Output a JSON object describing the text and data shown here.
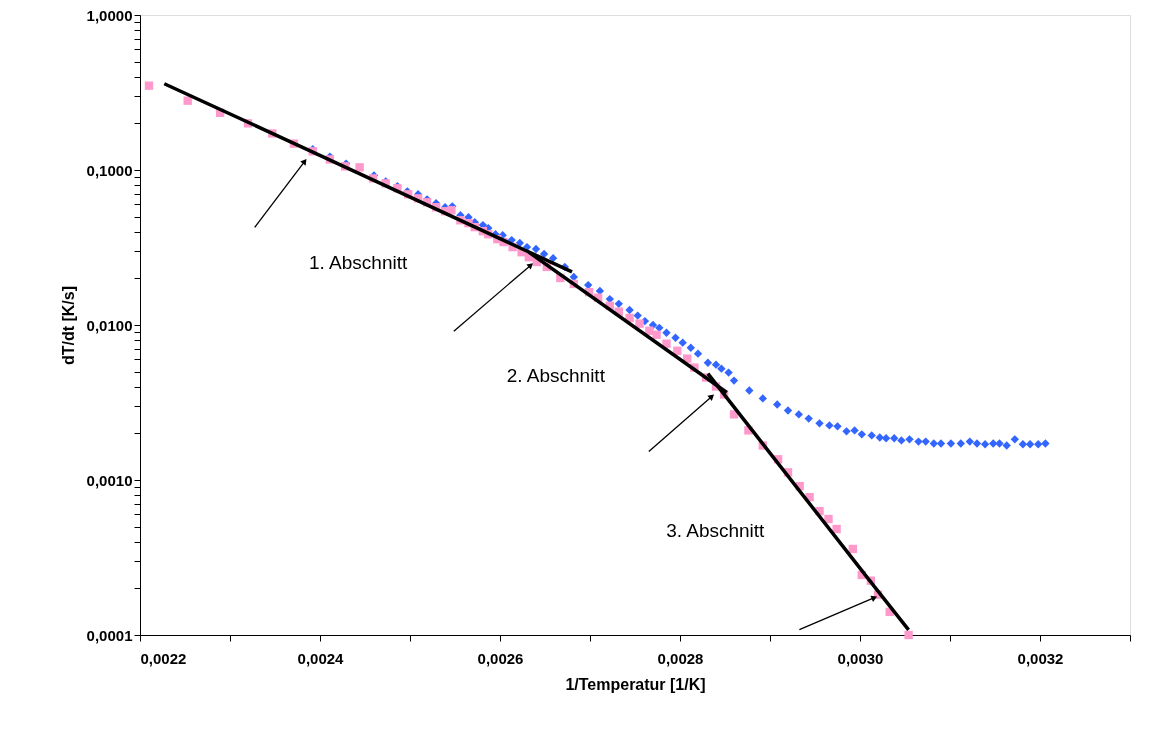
{
  "chart_data": {
    "type": "scatter",
    "xlabel": "1/Temperatur [1/K]",
    "ylabel": "dT/dt [K/s]",
    "log": "y",
    "grid": false,
    "xlim": [
      0.0022,
      0.0033
    ],
    "ylim": [
      0.0001,
      1
    ],
    "xticks": [
      {
        "value": 0.0022,
        "label": "0,0022"
      },
      {
        "value": 0.0023,
        "label": null
      },
      {
        "value": 0.0024,
        "label": "0,0024"
      },
      {
        "value": 0.0025,
        "label": null
      },
      {
        "value": 0.0026,
        "label": "0,0026"
      },
      {
        "value": 0.0027,
        "label": null
      },
      {
        "value": 0.0028,
        "label": "0,0028"
      },
      {
        "value": 0.0029,
        "label": null
      },
      {
        "value": 0.003,
        "label": "0,0030"
      },
      {
        "value": 0.0031,
        "label": null
      },
      {
        "value": 0.0032,
        "label": "0,0032"
      },
      {
        "value": 0.0033,
        "label": null
      }
    ],
    "yticks": [
      {
        "value": 0.0001,
        "label": "0,0001"
      },
      {
        "value": 0.0002,
        "label": null
      },
      {
        "value": 0.0003,
        "label": null
      },
      {
        "value": 0.0004,
        "label": null
      },
      {
        "value": 0.0005,
        "label": null
      },
      {
        "value": 0.0006,
        "label": null
      },
      {
        "value": 0.0007,
        "label": null
      },
      {
        "value": 0.0008,
        "label": null
      },
      {
        "value": 0.0009,
        "label": null
      },
      {
        "value": 0.001,
        "label": "0,0010"
      },
      {
        "value": 0.002,
        "label": null
      },
      {
        "value": 0.003,
        "label": null
      },
      {
        "value": 0.004,
        "label": null
      },
      {
        "value": 0.005,
        "label": null
      },
      {
        "value": 0.006,
        "label": null
      },
      {
        "value": 0.007,
        "label": null
      },
      {
        "value": 0.008,
        "label": null
      },
      {
        "value": 0.009,
        "label": null
      },
      {
        "value": 0.01,
        "label": "0,0100"
      },
      {
        "value": 0.02,
        "label": null
      },
      {
        "value": 0.03,
        "label": null
      },
      {
        "value": 0.04,
        "label": null
      },
      {
        "value": 0.05,
        "label": null
      },
      {
        "value": 0.06,
        "label": null
      },
      {
        "value": 0.07,
        "label": null
      },
      {
        "value": 0.08,
        "label": null
      },
      {
        "value": 0.09,
        "label": null
      },
      {
        "value": 0.1,
        "label": "0,1000"
      },
      {
        "value": 0.2,
        "label": null
      },
      {
        "value": 0.3,
        "label": null
      },
      {
        "value": 0.4,
        "label": null
      },
      {
        "value": 0.5,
        "label": null
      },
      {
        "value": 0.6,
        "label": null
      },
      {
        "value": 0.7,
        "label": null
      },
      {
        "value": 0.8,
        "label": null
      },
      {
        "value": 0.9,
        "label": null
      },
      {
        "value": 1,
        "label": "1,0000"
      }
    ],
    "series": [
      {
        "type": "scatter",
        "marker": "diamond",
        "color": "#3366ff",
        "x": [
          0.002392,
          0.002411,
          0.002429,
          0.00246,
          0.002473,
          0.002486,
          0.002497,
          0.002509,
          0.002519,
          0.002529,
          0.002539,
          0.002547,
          0.002556,
          0.002565,
          0.002572,
          0.002581,
          0.002587,
          0.002595,
          0.002603,
          0.002613,
          0.002622,
          0.00263,
          0.00264,
          0.002649,
          0.002659,
          0.002672,
          0.002682,
          0.002698,
          0.002711,
          0.002722,
          0.002732,
          0.002744,
          0.002753,
          0.002761,
          0.00277,
          0.002777,
          0.002785,
          0.002795,
          0.002803,
          0.002812,
          0.00282,
          0.002831,
          0.00284,
          0.002846,
          0.002854,
          0.00286,
          0.002877,
          0.002892,
          0.002908,
          0.00292,
          0.002932,
          0.002943,
          0.002955,
          0.002966,
          0.002975,
          0.002985,
          0.002994,
          0.003002,
          0.003013,
          0.003022,
          0.003029,
          0.003038,
          0.003046,
          0.003055,
          0.003065,
          0.003073,
          0.003082,
          0.00309,
          0.003101,
          0.003112,
          0.003122,
          0.00313,
          0.003139,
          0.003148,
          0.003155,
          0.003163,
          0.003172,
          0.003181,
          0.003189,
          0.003198,
          0.003206
        ],
        "values": [
          0.136,
          0.122,
          0.11,
          0.0923,
          0.0845,
          0.0785,
          0.0728,
          0.0697,
          0.0647,
          0.061,
          0.0575,
          0.0583,
          0.0511,
          0.0496,
          0.046,
          0.0441,
          0.0422,
          0.0385,
          0.038,
          0.0353,
          0.0338,
          0.0318,
          0.0309,
          0.0287,
          0.027,
          0.0237,
          0.0204,
          0.0181,
          0.0166,
          0.0147,
          0.0137,
          0.0125,
          0.0115,
          0.0106,
          0.01,
          0.00959,
          0.00891,
          0.00828,
          0.00769,
          0.00713,
          0.00653,
          0.00571,
          0.00555,
          0.00523,
          0.00493,
          0.00438,
          0.00378,
          0.00336,
          0.00307,
          0.00281,
          0.00265,
          0.00249,
          0.00232,
          0.00225,
          0.00222,
          0.00206,
          0.00209,
          0.00197,
          0.00194,
          0.00188,
          0.00186,
          0.00186,
          0.0018,
          0.00183,
          0.00177,
          0.00177,
          0.00172,
          0.00172,
          0.00172,
          0.00172,
          0.00177,
          0.00172,
          0.0017,
          0.00172,
          0.00172,
          0.00167,
          0.00183,
          0.0017,
          0.0017,
          0.0017,
          0.00172
        ]
      },
      {
        "type": "scatter",
        "marker": "square",
        "color": "#ff99cc",
        "x": [
          0.00221,
          0.002253,
          0.002289,
          0.00232,
          0.002347,
          0.002371,
          0.002392,
          0.002411,
          0.002428,
          0.002444,
          0.002459,
          0.002473,
          0.002486,
          0.002498,
          0.002509,
          0.002519,
          0.002529,
          0.002539,
          0.002546,
          0.002556,
          0.002565,
          0.002572,
          0.002581,
          0.002587,
          0.002597,
          0.002604,
          0.002614,
          0.002624,
          0.002632,
          0.002641,
          0.002652,
          0.002667,
          0.002682,
          0.002699,
          0.002709,
          0.002722,
          0.002732,
          0.002744,
          0.002755,
          0.002766,
          0.002774,
          0.002785,
          0.002797,
          0.002808,
          0.002816,
          0.002829,
          0.00284,
          0.002849,
          0.00286,
          0.002876,
          0.002892,
          0.002909,
          0.00292,
          0.002933,
          0.002944,
          0.002955,
          0.002965,
          0.002974,
          0.002992,
          0.003002,
          0.003012,
          0.00302,
          0.003033,
          0.003054
        ],
        "values": [
          0.35,
          0.28,
          0.234,
          0.2,
          0.172,
          0.148,
          0.132,
          0.117,
          0.1055,
          0.104,
          0.0883,
          0.082,
          0.0762,
          0.0697,
          0.0656,
          0.0619,
          0.0575,
          0.0542,
          0.055,
          0.0474,
          0.0454,
          0.0428,
          0.0403,
          0.0385,
          0.0358,
          0.0343,
          0.0318,
          0.0295,
          0.0274,
          0.0255,
          0.0237,
          0.0201,
          0.0184,
          0.0163,
          0.015,
          0.0133,
          0.0122,
          0.0111,
          0.0102,
          0.00918,
          0.00865,
          0.00757,
          0.00682,
          0.00607,
          0.00531,
          0.00458,
          0.00401,
          0.00356,
          0.00265,
          0.00209,
          0.00167,
          0.00136,
          0.00112,
          0.000912,
          0.000775,
          0.00063,
          0.00056,
          0.000483,
          0.000359,
          0.000244,
          0.000224,
          0.000182,
          0.000141,
          0.0001
        ]
      },
      {
        "type": "line",
        "color": "#000000",
        "x": [
          0.002227,
          0.002383,
          0.00268
        ],
        "values": [
          0.36,
          0.138,
          0.022
        ]
      },
      {
        "type": "line",
        "color": "#000000",
        "x": [
          0.002632,
          0.002852
        ],
        "values": [
          0.0295,
          0.00367
        ]
      },
      {
        "type": "line",
        "color": "#000000",
        "x": [
          0.002831,
          0.003016,
          0.003054
        ],
        "values": [
          0.00486,
          0.000205,
          0.000108
        ]
      }
    ],
    "annotations": [
      "1. Abschnitt",
      "2. Abschnitt",
      "3. Abschnitt"
    ]
  }
}
